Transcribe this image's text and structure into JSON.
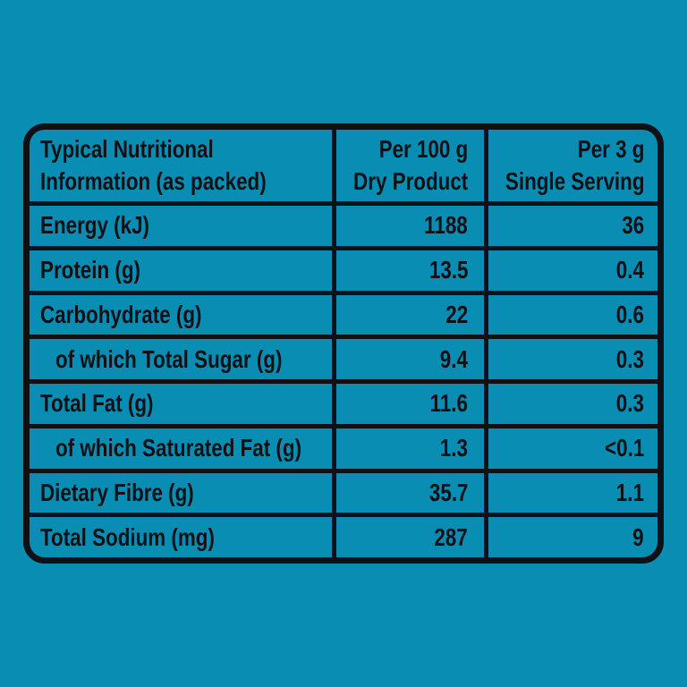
{
  "page": {
    "background_color": "#0a8db2"
  },
  "table": {
    "border_color": "#101116",
    "cell_background_color": "#0a8db2",
    "text_color": "#101116",
    "header": {
      "nutrient_line1": "Typical Nutritional",
      "nutrient_line2": "Information (as packed)",
      "per100_line1": "Per 100 g",
      "per100_line2": "Dry Product",
      "serving_line1": "Per 3 g",
      "serving_line2": "Single Serving"
    },
    "rows": [
      {
        "label": "Energy (kJ)",
        "per100": "1188",
        "serving": "36",
        "indent": false
      },
      {
        "label": "Protein (g)",
        "per100": "13.5",
        "serving": "0.4",
        "indent": false
      },
      {
        "label": "Carbohydrate (g)",
        "per100": "22",
        "serving": "0.6",
        "indent": false
      },
      {
        "label": "of which Total Sugar (g)",
        "per100": "9.4",
        "serving": "0.3",
        "indent": true
      },
      {
        "label": "Total Fat (g)",
        "per100": "11.6",
        "serving": "0.3",
        "indent": false
      },
      {
        "label": "of which Saturated Fat (g)",
        "per100": "1.3",
        "serving": "<0.1",
        "indent": true
      },
      {
        "label": "Dietary Fibre (g)",
        "per100": "35.7",
        "serving": "1.1",
        "indent": false
      },
      {
        "label": "Total Sodium (mg)",
        "per100": "287",
        "serving": "9",
        "indent": false
      }
    ]
  }
}
